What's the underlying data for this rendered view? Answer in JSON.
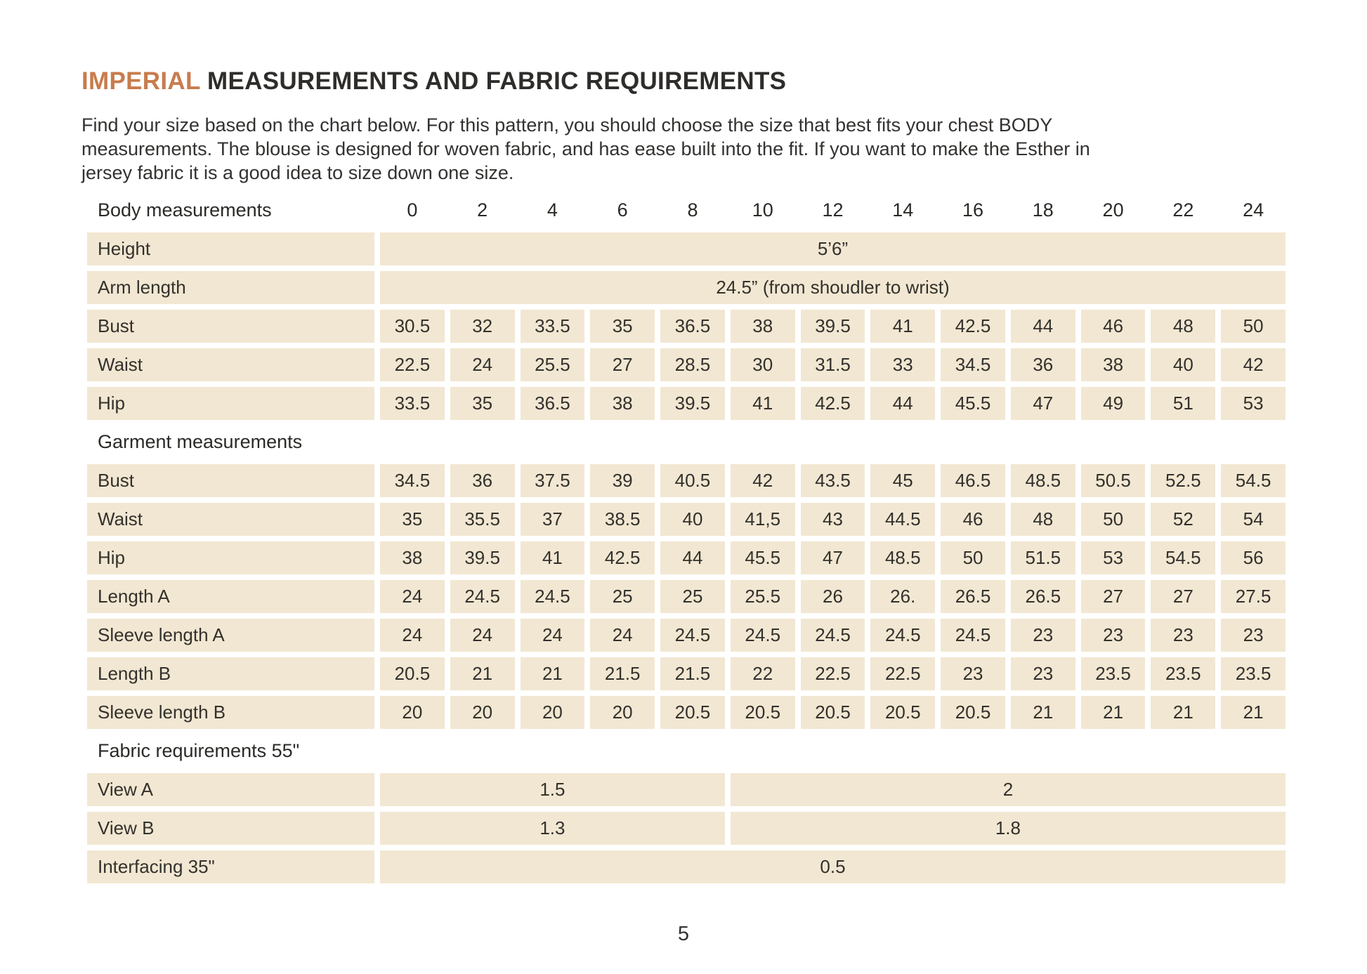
{
  "colors": {
    "accent": "#c87c4e",
    "row_bg": "#f2e7d2",
    "text": "#2e2c28"
  },
  "title": {
    "highlight": "IMPERIAL",
    "rest": " MEASUREMENTS AND FABRIC REQUIREMENTS"
  },
  "intro_lines": [
    "Find your size based on the chart below. For this pattern, you should choose the size that best fits your chest BODY",
    "measurements.  The blouse is designed for woven fabric, and has ease built into the fit. If you want to make the Esther in",
    "jersey fabric it is a good idea to size down one size."
  ],
  "page_number": "5",
  "size_chart": {
    "header_label": "Body measurements",
    "sizes": [
      "0",
      "2",
      "4",
      "6",
      "8",
      "10",
      "12",
      "14",
      "16",
      "18",
      "20",
      "22",
      "24"
    ],
    "rows": [
      {
        "label": "Height",
        "span": "all",
        "value": "5’6”"
      },
      {
        "label": "Arm length",
        "span": "all",
        "value": "24.5” (from shoudler to wrist)"
      },
      {
        "label": "Bust",
        "values": [
          "30.5",
          "32",
          "33.5",
          "35",
          "36.5",
          "38",
          "39.5",
          "41",
          "42.5",
          "44",
          "46",
          "48",
          "50"
        ]
      },
      {
        "label": "Waist",
        "values": [
          "22.5",
          "24",
          "25.5",
          "27",
          "28.5",
          "30",
          "31.5",
          "33",
          "34.5",
          "36",
          "38",
          "40",
          "42"
        ]
      },
      {
        "label": "Hip",
        "values": [
          "33.5",
          "35",
          "36.5",
          "38",
          "39.5",
          "41",
          "42.5",
          "44",
          "45.5",
          "47",
          "49",
          "51",
          "53"
        ]
      },
      {
        "section": "Garment measurements"
      },
      {
        "label": "Bust",
        "values": [
          "34.5",
          "36",
          "37.5",
          "39",
          "40.5",
          "42",
          "43.5",
          "45",
          "46.5",
          "48.5",
          "50.5",
          "52.5",
          "54.5"
        ]
      },
      {
        "label": "Waist",
        "values": [
          "35",
          "35.5",
          "37",
          "38.5",
          "40",
          "41,5",
          "43",
          "44.5",
          "46",
          "48",
          "50",
          "52",
          "54"
        ]
      },
      {
        "label": "Hip",
        "values": [
          "38",
          "39.5",
          "41",
          "42.5",
          "44",
          "45.5",
          "47",
          "48.5",
          "50",
          "51.5",
          "53",
          "54.5",
          "56"
        ]
      },
      {
        "label": "Length A",
        "values": [
          "24",
          "24.5",
          "24.5",
          "25",
          "25",
          "25.5",
          "26",
          "26.",
          "26.5",
          "26.5",
          "27",
          "27",
          "27.5"
        ]
      },
      {
        "label": "Sleeve length A",
        "values": [
          "24",
          "24",
          "24",
          "24",
          "24.5",
          "24.5",
          "24.5",
          "24.5",
          "24.5",
          "23",
          "23",
          "23",
          "23"
        ]
      },
      {
        "label": "Length B",
        "values": [
          "20.5",
          "21",
          "21",
          "21.5",
          "21.5",
          "22",
          "22.5",
          "22.5",
          "23",
          "23",
          "23.5",
          "23.5",
          "23.5"
        ]
      },
      {
        "label": "Sleeve length B",
        "values": [
          "20",
          "20",
          "20",
          "20",
          "20.5",
          "20.5",
          "20.5",
          "20.5",
          "20.5",
          "21",
          "21",
          "21",
          "21"
        ]
      },
      {
        "section": "Fabric requirements 55\""
      },
      {
        "label": "View A",
        "split": [
          {
            "span": 5,
            "value": "1.5"
          },
          {
            "span": 8,
            "value": "2"
          }
        ]
      },
      {
        "label": "View B",
        "split": [
          {
            "span": 5,
            "value": "1.3"
          },
          {
            "span": 8,
            "value": "1.8"
          }
        ]
      },
      {
        "label": "Interfacing 35\"",
        "span": "all",
        "value": "0.5"
      }
    ]
  }
}
